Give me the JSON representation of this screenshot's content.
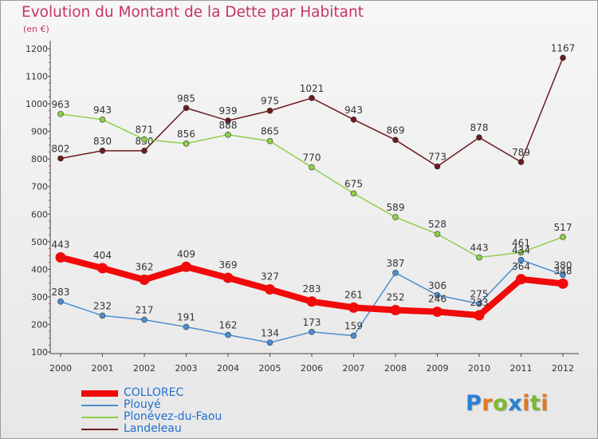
{
  "header": {
    "title": "Evolution du Montant de la Dette par Habitant",
    "unit": "(en €)"
  },
  "logo": {
    "text": "Proxiti",
    "letters": [
      {
        "ch": "P",
        "color": "#2a7fd4"
      },
      {
        "ch": "r",
        "color": "#e07820"
      },
      {
        "ch": "o",
        "color": "#7cb92f"
      },
      {
        "ch": "x",
        "color": "#2a7fd4"
      },
      {
        "ch": "i",
        "color": "#e07820"
      },
      {
        "ch": "t",
        "color": "#7cb92f"
      },
      {
        "ch": "i",
        "color": "#e07820"
      }
    ]
  },
  "chart_data": {
    "type": "line",
    "title": "Evolution du Montant de la Dette par Habitant",
    "ylabel": "(en €)",
    "x": [
      "2000",
      "2001",
      "2002",
      "2003",
      "2004",
      "2005",
      "2006",
      "2007",
      "2008",
      "2009",
      "2010",
      "2011",
      "2012"
    ],
    "ylim": [
      100,
      1200
    ],
    "yticks": [
      100,
      200,
      300,
      400,
      500,
      600,
      700,
      800,
      900,
      1000,
      1100,
      1200
    ],
    "grid": false,
    "legend_position": "bottom-left",
    "series": [
      {
        "name": "Landeleau",
        "color": "#6e1a1f",
        "values": [
          802,
          830,
          830,
          985,
          939,
          975,
          1021,
          943,
          869,
          773,
          878,
          789,
          1167
        ]
      },
      {
        "name": "Plonévez-du-Faou",
        "color": "#8ed04a",
        "values": [
          963,
          943,
          871,
          856,
          888,
          865,
          770,
          675,
          589,
          528,
          443,
          461,
          517
        ]
      },
      {
        "name": "Plouyé",
        "color": "#4a8fd0",
        "values": [
          283,
          232,
          217,
          191,
          162,
          134,
          173,
          159,
          387,
          306,
          275,
          434,
          380
        ]
      },
      {
        "name": "COLLOREC",
        "color": "#f00a0a",
        "values": [
          443,
          404,
          362,
          409,
          369,
          327,
          283,
          261,
          252,
          246,
          233,
          364,
          348
        ],
        "highlight": true
      }
    ],
    "legend": [
      "COLLOREC",
      "Plouyé",
      "Plonévez-du-Faou",
      "Landeleau"
    ]
  }
}
